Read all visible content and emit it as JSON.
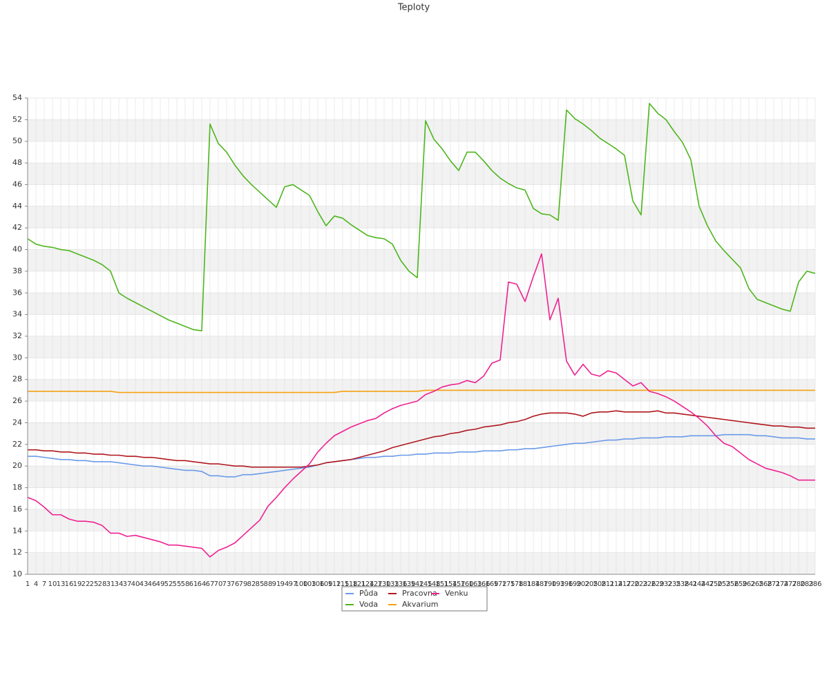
{
  "chart_data": {
    "type": "line",
    "title": "Teploty",
    "x": [
      1,
      4,
      7,
      10,
      13,
      16,
      19,
      22,
      25,
      28,
      31,
      34,
      37,
      40,
      43,
      46,
      49,
      52,
      55,
      58,
      61,
      64,
      67,
      70,
      73,
      76,
      79,
      82,
      85,
      88,
      91,
      94,
      97,
      100,
      103,
      106,
      109,
      112,
      115,
      118,
      121,
      124,
      127,
      130,
      133,
      136,
      139,
      142,
      145,
      148,
      151,
      154,
      157,
      160,
      163,
      166,
      169,
      172,
      175,
      178,
      181,
      184,
      187,
      190,
      193,
      196,
      199,
      202,
      205,
      208,
      211,
      214,
      217,
      220,
      223,
      226,
      229,
      232,
      235,
      238,
      241,
      244,
      247,
      250,
      253,
      256,
      259,
      262,
      265,
      268,
      271,
      274,
      277,
      280,
      283,
      286
    ],
    "xlim": [
      1,
      286
    ],
    "ylim": [
      10,
      54
    ],
    "yticks": [
      10,
      12,
      14,
      16,
      18,
      20,
      22,
      24,
      26,
      28,
      30,
      32,
      34,
      36,
      38,
      40,
      42,
      44,
      46,
      48,
      50,
      52,
      54
    ],
    "grid": true,
    "series": [
      {
        "name": "Půda",
        "color": "#6a9ae8",
        "values": [
          20.9,
          20.9,
          20.8,
          20.7,
          20.6,
          20.6,
          20.5,
          20.5,
          20.4,
          20.4,
          20.4,
          20.3,
          20.2,
          20.1,
          20.0,
          20.0,
          19.9,
          19.8,
          19.7,
          19.6,
          19.6,
          19.5,
          19.1,
          19.1,
          19.0,
          19.0,
          19.2,
          19.2,
          19.3,
          19.4,
          19.5,
          19.6,
          19.7,
          19.8,
          19.9,
          20.1,
          20.3,
          20.4,
          20.5,
          20.6,
          20.7,
          20.8,
          20.8,
          20.9,
          20.9,
          21.0,
          21.0,
          21.1,
          21.1,
          21.2,
          21.2,
          21.2,
          21.3,
          21.3,
          21.3,
          21.4,
          21.4,
          21.4,
          21.5,
          21.5,
          21.6,
          21.6,
          21.7,
          21.8,
          21.9,
          22.0,
          22.1,
          22.1,
          22.2,
          22.3,
          22.4,
          22.4,
          22.5,
          22.5,
          22.6,
          22.6,
          22.6,
          22.7,
          22.7,
          22.7,
          22.8,
          22.8,
          22.8,
          22.8,
          22.9,
          22.9,
          22.9,
          22.9,
          22.8,
          22.8,
          22.7,
          22.6,
          22.6,
          22.6,
          22.5,
          22.5
        ]
      },
      {
        "name": "Voda",
        "color": "#4db51c",
        "values": [
          41.0,
          40.5,
          40.3,
          40.2,
          40.0,
          39.9,
          39.6,
          39.3,
          39.0,
          38.6,
          38.0,
          36.0,
          35.5,
          35.1,
          34.7,
          34.3,
          33.9,
          33.5,
          33.2,
          32.9,
          32.6,
          32.5,
          51.6,
          49.8,
          49.0,
          47.8,
          46.8,
          46.0,
          45.3,
          44.6,
          43.9,
          45.8,
          46.0,
          45.5,
          45.0,
          43.5,
          42.2,
          43.1,
          42.9,
          42.3,
          41.8,
          41.3,
          41.1,
          41.0,
          40.5,
          39.0,
          38.0,
          37.4,
          51.9,
          50.2,
          49.3,
          48.2,
          47.3,
          49.0,
          49.0,
          48.2,
          47.3,
          46.6,
          46.1,
          45.7,
          45.5,
          43.8,
          43.3,
          43.2,
          42.7,
          52.9,
          52.1,
          51.6,
          51.0,
          50.3,
          49.8,
          49.3,
          48.7,
          44.5,
          43.2,
          53.5,
          52.6,
          52.0,
          50.9,
          49.9,
          48.3,
          44.0,
          42.2,
          40.8,
          39.9,
          39.1,
          38.3,
          36.4,
          35.4,
          35.1,
          34.8,
          34.5,
          34.3,
          37.0,
          38.0,
          37.8
        ]
      },
      {
        "name": "Pracovna",
        "color": "#b0161c",
        "values": [
          21.5,
          21.5,
          21.4,
          21.4,
          21.3,
          21.3,
          21.2,
          21.2,
          21.1,
          21.1,
          21.0,
          21.0,
          20.9,
          20.9,
          20.8,
          20.8,
          20.7,
          20.6,
          20.5,
          20.5,
          20.4,
          20.3,
          20.2,
          20.2,
          20.1,
          20.0,
          20.0,
          19.9,
          19.9,
          19.9,
          19.9,
          19.9,
          19.9,
          19.9,
          20.0,
          20.1,
          20.3,
          20.4,
          20.5,
          20.6,
          20.8,
          21.0,
          21.2,
          21.4,
          21.7,
          21.9,
          22.1,
          22.3,
          22.5,
          22.7,
          22.8,
          23.0,
          23.1,
          23.3,
          23.4,
          23.6,
          23.7,
          23.8,
          24.0,
          24.1,
          24.3,
          24.6,
          24.8,
          24.9,
          24.9,
          24.9,
          24.8,
          24.6,
          24.9,
          25.0,
          25.0,
          25.1,
          25.0,
          25.0,
          25.0,
          25.0,
          25.1,
          24.9,
          24.9,
          24.8,
          24.7,
          24.6,
          24.5,
          24.4,
          24.3,
          24.2,
          24.1,
          24.0,
          23.9,
          23.8,
          23.7,
          23.7,
          23.6,
          23.6,
          23.5,
          23.5
        ]
      },
      {
        "name": "Akvarium",
        "color": "#f5a10f",
        "values": [
          26.9,
          26.9,
          26.9,
          26.9,
          26.9,
          26.9,
          26.9,
          26.9,
          26.9,
          26.9,
          26.9,
          26.8,
          26.8,
          26.8,
          26.8,
          26.8,
          26.8,
          26.8,
          26.8,
          26.8,
          26.8,
          26.8,
          26.8,
          26.8,
          26.8,
          26.8,
          26.8,
          26.8,
          26.8,
          26.8,
          26.8,
          26.8,
          26.8,
          26.8,
          26.8,
          26.8,
          26.8,
          26.8,
          26.9,
          26.9,
          26.9,
          26.9,
          26.9,
          26.9,
          26.9,
          26.9,
          26.9,
          26.9,
          27.0,
          27.0,
          27.0,
          27.0,
          27.0,
          27.0,
          27.0,
          27.0,
          27.0,
          27.0,
          27.0,
          27.0,
          27.0,
          27.0,
          27.0,
          27.0,
          27.0,
          27.0,
          27.0,
          27.0,
          27.0,
          27.0,
          27.0,
          27.0,
          27.0,
          27.0,
          27.0,
          27.0,
          27.0,
          27.0,
          27.0,
          27.0,
          27.0,
          27.0,
          27.0,
          27.0,
          27.0,
          27.0,
          27.0,
          27.0,
          27.0,
          27.0,
          27.0,
          27.0,
          27.0,
          27.0,
          27.0,
          27.0
        ]
      },
      {
        "name": "Venku",
        "color": "#ee2090",
        "values": [
          17.1,
          16.8,
          16.2,
          15.5,
          15.5,
          15.1,
          14.9,
          14.9,
          14.8,
          14.5,
          13.8,
          13.8,
          13.5,
          13.6,
          13.4,
          13.2,
          13.0,
          12.7,
          12.7,
          12.6,
          12.5,
          12.4,
          11.6,
          12.2,
          12.5,
          12.9,
          13.6,
          14.3,
          15.0,
          16.3,
          17.1,
          18.0,
          18.8,
          19.5,
          20.2,
          21.3,
          22.1,
          22.8,
          23.2,
          23.6,
          23.9,
          24.2,
          24.4,
          24.9,
          25.3,
          25.6,
          25.8,
          26.0,
          26.6,
          26.9,
          27.3,
          27.5,
          27.6,
          27.9,
          27.7,
          28.3,
          29.5,
          29.8,
          37.0,
          36.8,
          35.2,
          37.5,
          39.6,
          33.5,
          35.5,
          29.7,
          28.4,
          29.4,
          28.5,
          28.3,
          28.8,
          28.6,
          28.0,
          27.4,
          27.7,
          26.9,
          26.7,
          26.4,
          26.0,
          25.5,
          25.0,
          24.4,
          23.7,
          22.8,
          22.1,
          21.8,
          21.2,
          20.6,
          20.2,
          19.8,
          19.6,
          19.4,
          19.1,
          18.7,
          18.7,
          18.7
        ]
      }
    ]
  }
}
